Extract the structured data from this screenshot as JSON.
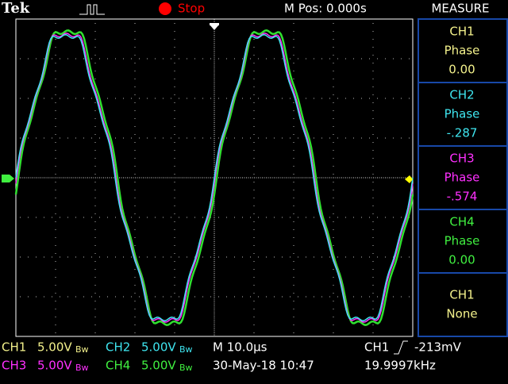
{
  "header": {
    "brand": "Tek",
    "status": "Stop",
    "position": "M Pos: 0.000s"
  },
  "measure": {
    "title": "MEASURE",
    "items": [
      {
        "channel": "CH1",
        "label": "Phase",
        "value": "0.00"
      },
      {
        "channel": "CH2",
        "label": "Phase",
        "value": "-.287"
      },
      {
        "channel": "CH3",
        "label": "Phase",
        "value": "-.574"
      },
      {
        "channel": "CH4",
        "label": "Phase",
        "value": "0.00"
      },
      {
        "channel": "CH1",
        "label": "None"
      }
    ]
  },
  "footer": {
    "channels": [
      {
        "name": "CH1",
        "scale": "5.00V",
        "bw": "Bw"
      },
      {
        "name": "CH2",
        "scale": "5.00V",
        "bw": "Bw"
      },
      {
        "name": "CH3",
        "scale": "5.00V",
        "bw": "Bw"
      },
      {
        "name": "CH4",
        "scale": "5.00V",
        "bw": "Bw"
      }
    ],
    "timebase": "M 10.0µs",
    "date": "30-May-18 10:47",
    "trigger_source": "CH1",
    "trigger_level": "-213mV",
    "frequency": "19.9997kHz"
  }
}
